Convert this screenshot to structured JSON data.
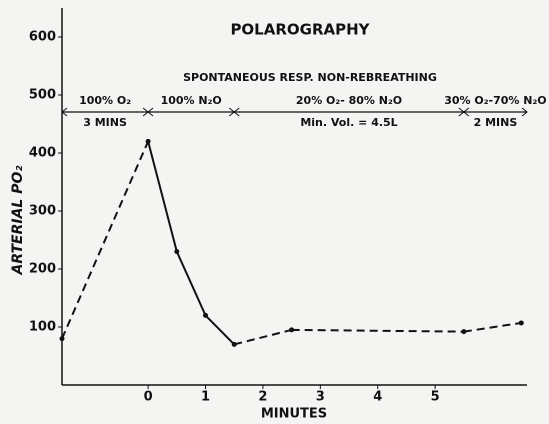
{
  "chart_data": {
    "type": "line",
    "title": "POLAROGRAPHY",
    "subtitle": "SPONTANEOUS RESP. NON-REBREATHING",
    "x_label": "MINUTES",
    "y_label": "ARTERIAL PO₂",
    "x": [
      -1.5,
      0,
      0.5,
      1,
      1.5,
      2.5,
      5.5,
      6.5
    ],
    "values": [
      80,
      420,
      230,
      120,
      70,
      95,
      92,
      107
    ],
    "line_styles": [
      "dashed",
      "solid",
      "solid",
      "solid",
      "dashed",
      "dashed",
      "dashed"
    ],
    "color": "#111111",
    "xlim": [
      -1.5,
      6.6
    ],
    "xticks": [
      0,
      1,
      2,
      3,
      4,
      5
    ],
    "ylim": [
      0,
      650
    ],
    "yticks": [
      100,
      200,
      300,
      400,
      500,
      600
    ],
    "phases": [
      {
        "label": "100% O₂",
        "sublabel": "3 MINS",
        "start": -1.5,
        "end": 0
      },
      {
        "label": "100% N₂O",
        "start": 0,
        "end": 1.5
      },
      {
        "label": "20% O₂- 80% N₂O",
        "sublabel": "Min. Vol. = 4.5L",
        "start": 1.5,
        "end": 5.5
      },
      {
        "label": "30% O₂-70% N₂O",
        "sublabel": "2 MINS",
        "start": 5.5,
        "end": 6.6
      }
    ]
  }
}
